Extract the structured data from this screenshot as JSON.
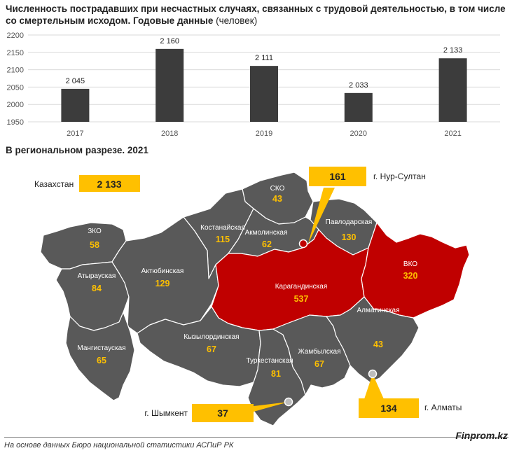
{
  "title": "Численность пострадавших при несчастных случаях, связанных с трудовой деятельностью, в том числе со смертельным исходом. Годовые данные",
  "unit": "(человек)",
  "chart_data": {
    "type": "bar",
    "categories": [
      "2017",
      "2018",
      "2019",
      "2020",
      "2021"
    ],
    "values": [
      2045,
      2160,
      2111,
      2033,
      2133
    ],
    "value_labels": [
      "2 045",
      "2 160",
      "2 111",
      "2 033",
      "2 133"
    ],
    "ylim": [
      1950,
      2200
    ],
    "yticks": [
      "1950",
      "2000",
      "2050",
      "2100",
      "2150",
      "2200"
    ],
    "grid": true,
    "bar_color": "#3c3c3c"
  },
  "map": {
    "subtitle": "В региональном разрезе. 2021",
    "total_label": "Казахстан",
    "total_value": "2 133",
    "highlight_color": "#c00000",
    "base_color": "#595959",
    "callout_color": "#ffc000",
    "regions": [
      {
        "name": "СКО",
        "value": "43"
      },
      {
        "name": "Павлодарская",
        "value": "130"
      },
      {
        "name": "Костанайская",
        "value": "115"
      },
      {
        "name": "Акмолинская",
        "value": "62"
      },
      {
        "name": "ЗКО",
        "value": "58"
      },
      {
        "name": "Атырауская",
        "value": "84"
      },
      {
        "name": "Актюбинская",
        "value": "129"
      },
      {
        "name": "Карагандинская",
        "value": "537"
      },
      {
        "name": "ВКО",
        "value": "320"
      },
      {
        "name": "Кызылординская",
        "value": "67"
      },
      {
        "name": "Мангистауская",
        "value": "65"
      },
      {
        "name": "Туркестанская",
        "value": "81"
      },
      {
        "name": "Жамбылская",
        "value": "67"
      },
      {
        "name": "Алматинская",
        "value": "43"
      }
    ],
    "cities": [
      {
        "name": "г. Нур-Султан",
        "value": "161"
      },
      {
        "name": "г. Шымкент",
        "value": "37"
      },
      {
        "name": "г. Алматы",
        "value": "134"
      }
    ]
  },
  "footer": "На основе данных Бюро национальной статистики АСПиР РК",
  "brand": "Finprom.kz"
}
